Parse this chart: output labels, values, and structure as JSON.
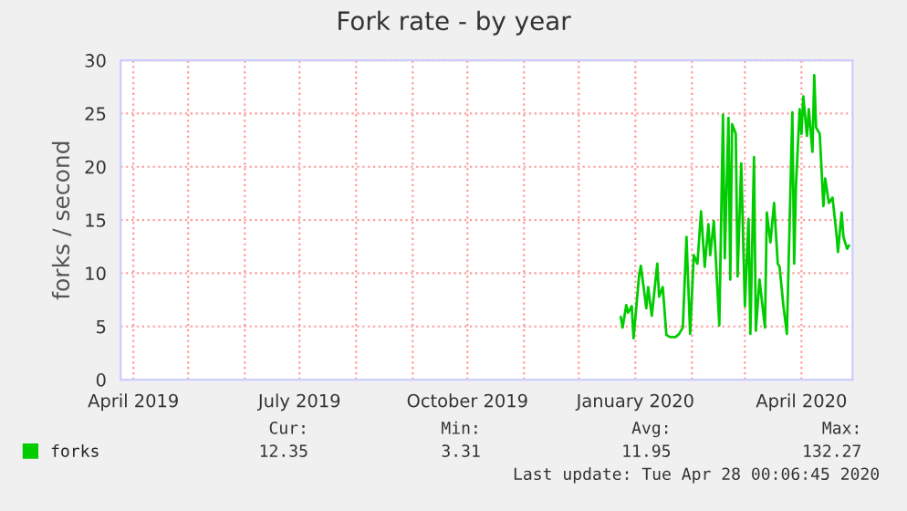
{
  "chart_data": {
    "type": "line",
    "title": "Fork rate - by year",
    "ylabel": "forks / second",
    "x": [
      "2019-12-24",
      "2019-12-25",
      "2019-12-27",
      "2019-12-28",
      "2019-12-30",
      "2019-12-31",
      "2020-01-03",
      "2020-01-04",
      "2020-01-07",
      "2020-01-08",
      "2020-01-10",
      "2020-01-13",
      "2020-01-14",
      "2020-01-16",
      "2020-01-18",
      "2020-01-20",
      "2020-01-23",
      "2020-01-25",
      "2020-01-27",
      "2020-01-29",
      "2020-01-31",
      "2020-02-02",
      "2020-02-04",
      "2020-02-06",
      "2020-02-08",
      "2020-02-10",
      "2020-02-11",
      "2020-02-13",
      "2020-02-16",
      "2020-02-18",
      "2020-02-19",
      "2020-02-21",
      "2020-02-22",
      "2020-02-23",
      "2020-02-25",
      "2020-02-26",
      "2020-02-28",
      "2020-03-01",
      "2020-03-03",
      "2020-03-04",
      "2020-03-06",
      "2020-03-07",
      "2020-03-09",
      "2020-03-12",
      "2020-03-13",
      "2020-03-15",
      "2020-03-17",
      "2020-03-19",
      "2020-03-20",
      "2020-03-22",
      "2020-03-24",
      "2020-03-27",
      "2020-03-28",
      "2020-03-29",
      "2020-03-31",
      "2020-04-01",
      "2020-04-02",
      "2020-04-04",
      "2020-04-05",
      "2020-04-07",
      "2020-04-08",
      "2020-04-09",
      "2020-04-11",
      "2020-04-13",
      "2020-04-14",
      "2020-04-16",
      "2020-04-18",
      "2020-04-20",
      "2020-04-21",
      "2020-04-23",
      "2020-04-24",
      "2020-04-26",
      "2020-04-27"
    ],
    "series": [
      {
        "name": "forks",
        "color": "#00cc00",
        "values": [
          5.9,
          4.9,
          7.0,
          6.3,
          6.9,
          3.9,
          9.7,
          10.7,
          6.7,
          8.7,
          6.0,
          10.9,
          7.8,
          8.7,
          4.2,
          4.0,
          4.0,
          4.3,
          4.9,
          13.4,
          4.3,
          11.7,
          10.9,
          15.8,
          10.6,
          14.6,
          11.7,
          14.9,
          5.1,
          24.9,
          11.4,
          24.6,
          9.4,
          24.0,
          23.1,
          9.7,
          20.3,
          6.9,
          15.1,
          4.3,
          20.9,
          4.6,
          9.4,
          4.9,
          15.7,
          12.9,
          16.6,
          10.9,
          10.6,
          7.1,
          4.3,
          25.1,
          10.9,
          18.3,
          25.4,
          23.1,
          26.6,
          22.9,
          25.4,
          21.4,
          28.6,
          23.7,
          23.1,
          16.3,
          18.9,
          16.6,
          17.1,
          14.0,
          12.0,
          15.7,
          13.4,
          12.3,
          12.6
        ]
      }
    ],
    "xlim": [
      "2019-03-25",
      "2020-04-29"
    ],
    "xticks": [
      {
        "value": "2019-04-01",
        "label": "April 2019"
      },
      {
        "value": "2019-05-01",
        "label": null
      },
      {
        "value": "2019-06-01",
        "label": null
      },
      {
        "value": "2019-07-01",
        "label": "July 2019"
      },
      {
        "value": "2019-08-01",
        "label": null
      },
      {
        "value": "2019-09-01",
        "label": null
      },
      {
        "value": "2019-10-01",
        "label": "October 2019"
      },
      {
        "value": "2019-11-01",
        "label": null
      },
      {
        "value": "2019-12-01",
        "label": null
      },
      {
        "value": "2020-01-01",
        "label": "January 2020"
      },
      {
        "value": "2020-02-01",
        "label": null
      },
      {
        "value": "2020-03-01",
        "label": null
      },
      {
        "value": "2020-04-01",
        "label": "April 2020"
      }
    ],
    "ylim": [
      0,
      30
    ],
    "yticks": [
      0,
      5,
      10,
      15,
      20,
      25,
      30
    ],
    "grid": true,
    "legend": "bottom left",
    "line_style": "solid",
    "marker": "none",
    "annotations": [
      "Cur:",
      "Min:",
      "Avg:",
      "Max:",
      "12.35",
      "3.31",
      "11.95",
      "132.27",
      "Last update: Tue Apr 28 00:06:45 2020"
    ]
  }
}
